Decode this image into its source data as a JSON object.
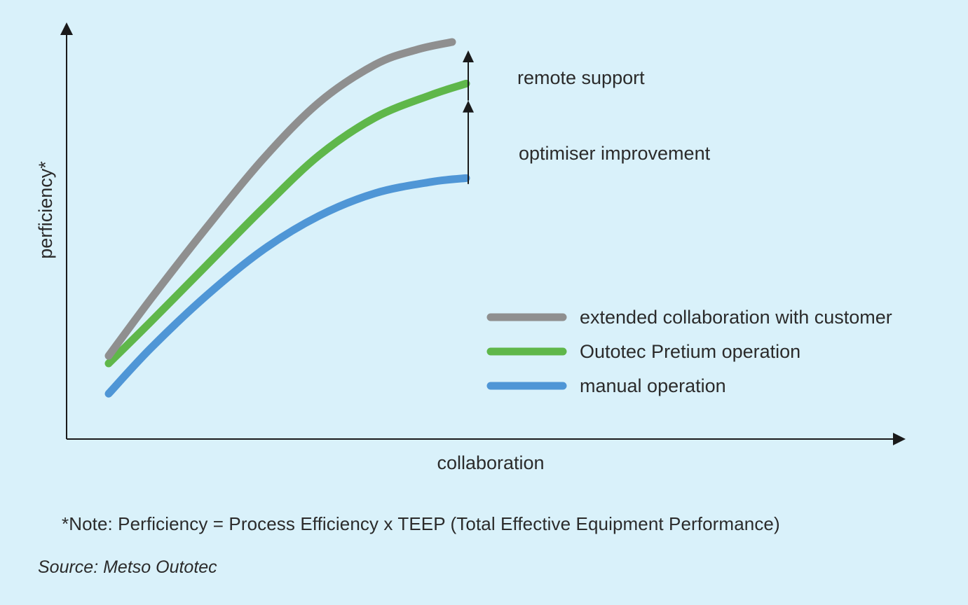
{
  "chart_data": {
    "type": "line",
    "xlabel": "collaboration",
    "ylabel": "perficiency*",
    "xlim": [
      0,
      100
    ],
    "ylim": [
      0,
      100
    ],
    "series": [
      {
        "name": "extended collaboration with customer",
        "color": "#8f8f8f",
        "x": [
          6,
          12,
          20,
          28,
          36,
          44,
          50,
          55
        ],
        "y": [
          22,
          37,
          56,
          74,
          89,
          99,
          103,
          105
        ]
      },
      {
        "name": "Outotec Pretium operation",
        "color": "#5fb74a",
        "x": [
          6,
          12,
          20,
          28,
          36,
          44,
          52,
          57
        ],
        "y": [
          20,
          31,
          46,
          61,
          75,
          85,
          91,
          94
        ]
      },
      {
        "name": "manual operation",
        "color": "#4f96d6",
        "x": [
          6,
          12,
          20,
          28,
          36,
          44,
          52,
          57
        ],
        "y": [
          12,
          24,
          38,
          50,
          59,
          65,
          68,
          69
        ]
      }
    ],
    "annotations": [
      {
        "label": "remote support"
      },
      {
        "label": "optimiser improvement"
      }
    ],
    "legend_position": "right"
  },
  "note": "*Note: Perficiency = Process Efficiency x TEEP (Total Effective Equipment Performance)",
  "source": "Source: Metso Outotec",
  "colors": {
    "background": "#d9f1fa",
    "axis": "#1a1a1a",
    "text": "#2b2b2b"
  }
}
